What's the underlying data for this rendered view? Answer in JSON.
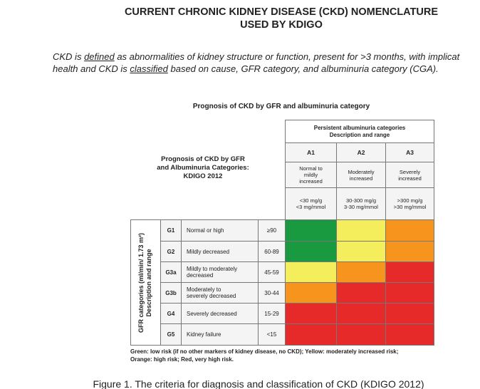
{
  "header": {
    "title_lines": [
      "CURRENT CHRONIC KIDNEY DISEASE (CKD) NOMENCLATURE",
      "USED BY KDIGO"
    ]
  },
  "intro": {
    "line1": [
      "CKD is ",
      "defined",
      " as abnormalities of kidney structure or function, present for >3 months, with implicat"
    ],
    "line2": [
      "health and CKD is ",
      "classified",
      " based on cause, GFR category, and albuminuria category (CGA)."
    ]
  },
  "figure": {
    "title": "Prognosis of CKD by GFR and albuminuria category",
    "corner_lines": [
      "Prognosis of CKD by GFR",
      "and Albuminuria Categories:",
      "KDIGO 2012"
    ],
    "top_header_lines": [
      "Persistent albuminuria categories",
      "Description and range"
    ],
    "side_label_lines": [
      "GFR categories (ml/min/ 1.73 m²)",
      "Description and range"
    ],
    "columns": [
      {
        "code": "A1",
        "desc": [
          "Normal to",
          "mildly",
          "increased"
        ],
        "range": [
          "<30 mg/g",
          "<3 mg/mmol"
        ]
      },
      {
        "code": "A2",
        "desc": [
          "Moderately",
          "increased"
        ],
        "range": [
          "30-300 mg/g",
          "3-30 mg/mmol"
        ]
      },
      {
        "code": "A3",
        "desc": [
          "Severely",
          "increased"
        ],
        "range": [
          ">300 mg/g",
          ">30 mg/mmol"
        ]
      }
    ],
    "rows": [
      {
        "code": "G1",
        "desc": [
          "Normal or high"
        ],
        "range": "≥90",
        "risk": [
          "#1a9a40",
          "#f5ee5c",
          "#f7941e"
        ]
      },
      {
        "code": "G2",
        "desc": [
          "Mildly decreased"
        ],
        "range": "60-89",
        "risk": [
          "#1a9a40",
          "#f5ee5c",
          "#f7941e"
        ]
      },
      {
        "code": "G3a",
        "desc": [
          "Mildly to moderately",
          "decreased"
        ],
        "range": "45-59",
        "risk": [
          "#f5ee5c",
          "#f7941e",
          "#e62a2a"
        ]
      },
      {
        "code": "G3b",
        "desc": [
          "Moderately to",
          "severely decreased"
        ],
        "range": "30-44",
        "risk": [
          "#f7941e",
          "#e62a2a",
          "#e62a2a"
        ]
      },
      {
        "code": "G4",
        "desc": [
          "Severely decreased"
        ],
        "range": "15-29",
        "risk": [
          "#e62a2a",
          "#e62a2a",
          "#e62a2a"
        ]
      },
      {
        "code": "G5",
        "desc": [
          "Kidney failure"
        ],
        "range": "<15",
        "risk": [
          "#e62a2a",
          "#e62a2a",
          "#e62a2a"
        ]
      }
    ],
    "legend_lines": [
      "Green: low risk (if no other markers of kidney disease, no CKD); Yellow: moderately increased risk;",
      "Orange: high risk; Red, very high risk."
    ]
  },
  "caption": "Figure 1. The criteria for diagnosis and classification of CKD (KDIGO 2012)"
}
